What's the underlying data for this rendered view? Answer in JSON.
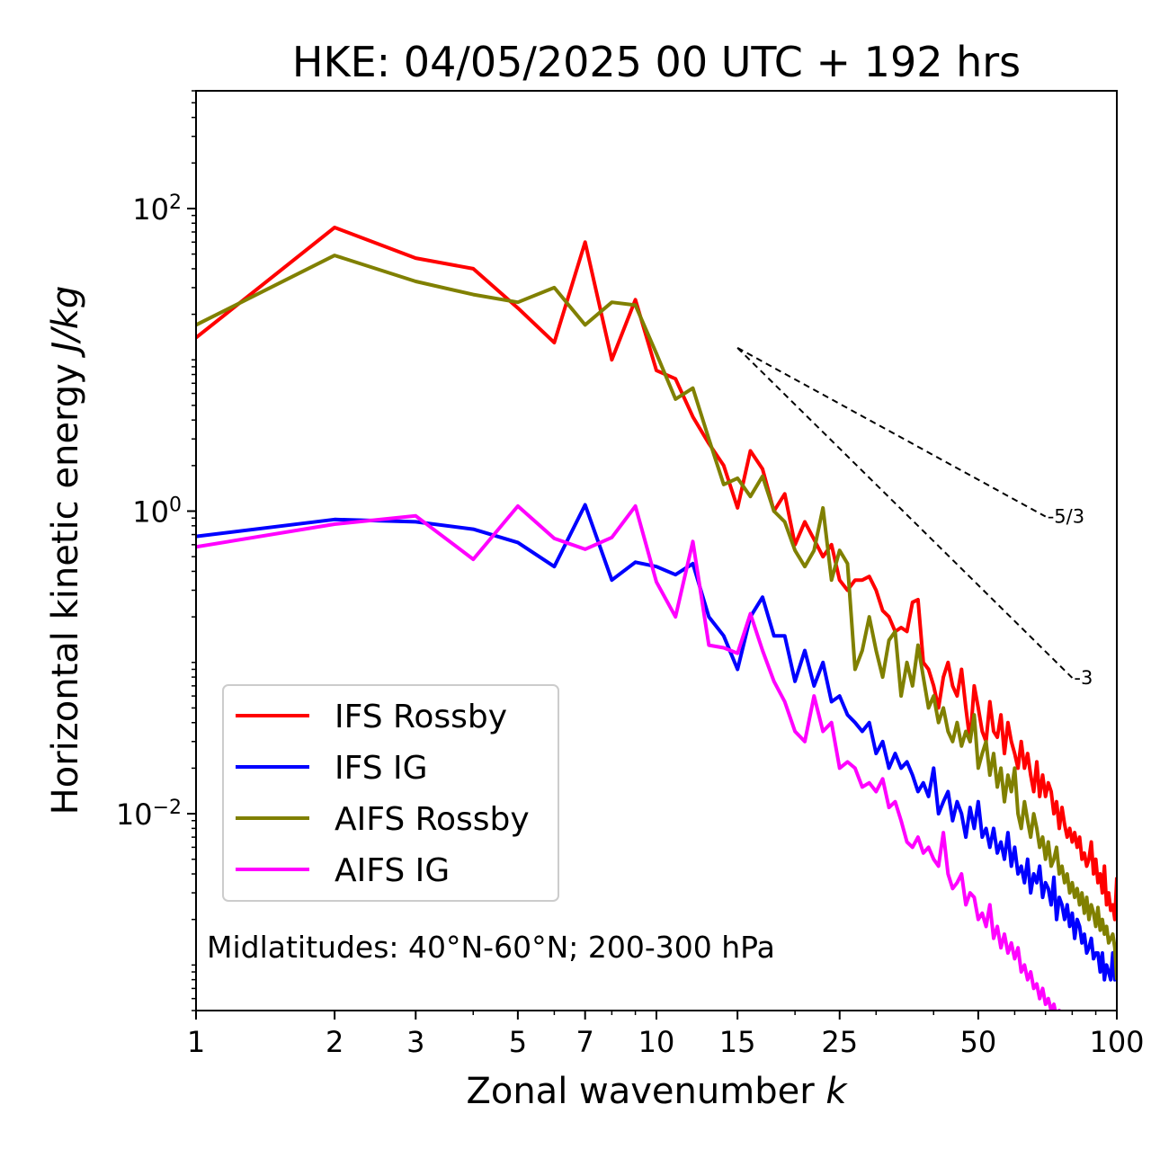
{
  "chart_data": {
    "type": "line",
    "title": "HKE: 04/05/2025 00 UTC + 192 hrs",
    "xlabel": "Zonal wavenumber",
    "xlabel_var": "k",
    "ylabel": "Horizontal kinetic energy",
    "ylabel_unit": "J/kg",
    "xscale": "log",
    "yscale": "log",
    "xlim": [
      1,
      100
    ],
    "ylim": [
      0.0005,
      600
    ],
    "x_ticks": [
      1,
      2,
      3,
      5,
      7,
      10,
      15,
      25,
      50,
      100
    ],
    "x_tick_labels": [
      "1",
      "2",
      "3",
      "5",
      "7",
      "10",
      "15",
      "25",
      "50",
      "100"
    ],
    "y_ticks": [
      {
        "value": 100,
        "base": "10",
        "exp": "2"
      },
      {
        "value": 1,
        "base": "10",
        "exp": "0"
      },
      {
        "value": 0.01,
        "base": "10",
        "exp": "−2"
      }
    ],
    "annotation": "Midlatitudes: 40°N-60°N; 200-300 hPa",
    "legend_position": "lower-left",
    "slope_guides": [
      {
        "label": "-5/3",
        "slope": -1.6667,
        "x_start": 15,
        "y_start": 12,
        "x_end": 70
      },
      {
        "label": "-3",
        "slope": -3,
        "x_start": 15,
        "y_start": 12,
        "x_end": 80
      }
    ],
    "series": [
      {
        "name": "IFS Rossby",
        "color": "#ff0000",
        "x": [
          1,
          2,
          3,
          4,
          5,
          6,
          7,
          8,
          9,
          10,
          11,
          12,
          13,
          14,
          15,
          16,
          17,
          18,
          19,
          20,
          21,
          22,
          23,
          24,
          25,
          26,
          27,
          28,
          29,
          30,
          31,
          32,
          33,
          34,
          35,
          36,
          37,
          38,
          39,
          40,
          41,
          42,
          43,
          44,
          45,
          46,
          47,
          48,
          49,
          50,
          51,
          52,
          53,
          54,
          55,
          56,
          57,
          58,
          59,
          60,
          61,
          62,
          63,
          64,
          65,
          66,
          67,
          68,
          69,
          70,
          71,
          72,
          73,
          74,
          75,
          76,
          77,
          78,
          79,
          80,
          81,
          82,
          83,
          84,
          85,
          86,
          87,
          88,
          89,
          90,
          91,
          92,
          93,
          94,
          95,
          96,
          97,
          98,
          99,
          100
        ],
        "y": [
          14,
          75,
          47,
          40,
          22,
          13,
          60,
          10,
          25,
          8.5,
          7.5,
          4.2,
          2.8,
          2.0,
          1.05,
          2.5,
          1.9,
          1.0,
          1.3,
          0.6,
          0.85,
          0.65,
          0.5,
          0.6,
          0.35,
          0.3,
          0.35,
          0.35,
          0.37,
          0.3,
          0.22,
          0.2,
          0.16,
          0.17,
          0.16,
          0.25,
          0.26,
          0.1,
          0.09,
          0.07,
          0.05,
          0.08,
          0.1,
          0.07,
          0.06,
          0.09,
          0.05,
          0.03,
          0.07,
          0.05,
          0.035,
          0.03,
          0.055,
          0.035,
          0.032,
          0.045,
          0.025,
          0.04,
          0.03,
          0.025,
          0.02,
          0.03,
          0.02,
          0.025,
          0.018,
          0.014,
          0.022,
          0.013,
          0.018,
          0.013,
          0.016,
          0.014,
          0.01,
          0.012,
          0.008,
          0.011,
          0.0085,
          0.007,
          0.008,
          0.0065,
          0.0075,
          0.006,
          0.007,
          0.005,
          0.0055,
          0.0045,
          0.005,
          0.0065,
          0.004,
          0.005,
          0.0035,
          0.004,
          0.003,
          0.0045,
          0.0025,
          0.003,
          0.0023,
          0.0025,
          0.002,
          0.0038
        ]
      },
      {
        "name": "IFS IG",
        "color": "#0000ff",
        "x": [
          1,
          2,
          3,
          4,
          5,
          6,
          7,
          8,
          9,
          10,
          11,
          12,
          13,
          14,
          15,
          16,
          17,
          18,
          19,
          20,
          21,
          22,
          23,
          24,
          25,
          26,
          27,
          28,
          29,
          30,
          31,
          32,
          33,
          34,
          35,
          36,
          37,
          38,
          39,
          40,
          41,
          42,
          43,
          44,
          45,
          46,
          47,
          48,
          49,
          50,
          51,
          52,
          53,
          54,
          55,
          56,
          57,
          58,
          59,
          60,
          61,
          62,
          63,
          64,
          65,
          66,
          67,
          68,
          69,
          70,
          71,
          72,
          73,
          74,
          75,
          76,
          77,
          78,
          79,
          80,
          81,
          82,
          83,
          84,
          85,
          86,
          87,
          88,
          89,
          90,
          91,
          92,
          93,
          94,
          95,
          96,
          97,
          98,
          99,
          100
        ],
        "y": [
          0.68,
          0.88,
          0.85,
          0.76,
          0.62,
          0.43,
          1.1,
          0.35,
          0.46,
          0.43,
          0.38,
          0.45,
          0.2,
          0.15,
          0.09,
          0.2,
          0.27,
          0.15,
          0.15,
          0.075,
          0.12,
          0.07,
          0.1,
          0.055,
          0.06,
          0.045,
          0.04,
          0.035,
          0.04,
          0.025,
          0.03,
          0.02,
          0.025,
          0.02,
          0.022,
          0.018,
          0.014,
          0.016,
          0.013,
          0.02,
          0.01,
          0.012,
          0.014,
          0.009,
          0.012,
          0.01,
          0.007,
          0.011,
          0.008,
          0.012,
          0.007,
          0.008,
          0.006,
          0.008,
          0.0055,
          0.0065,
          0.005,
          0.0075,
          0.0045,
          0.006,
          0.004,
          0.0045,
          0.0035,
          0.005,
          0.003,
          0.004,
          0.0035,
          0.0045,
          0.0028,
          0.0035,
          0.0032,
          0.0025,
          0.0038,
          0.002,
          0.0028,
          0.0025,
          0.002,
          0.0025,
          0.0018,
          0.0022,
          0.0015,
          0.002,
          0.0018,
          0.0014,
          0.0016,
          0.0012,
          0.0013,
          0.0015,
          0.0011,
          0.0012,
          0.0012,
          0.0009,
          0.0012,
          0.0008,
          0.001,
          0.0009,
          0.0008,
          0.0012,
          0.0008,
          0.0011
        ]
      },
      {
        "name": "AIFS Rossby",
        "color": "#808000",
        "x": [
          1,
          2,
          3,
          4,
          5,
          6,
          7,
          8,
          9,
          10,
          11,
          12,
          13,
          14,
          15,
          16,
          17,
          18,
          19,
          20,
          21,
          22,
          23,
          24,
          25,
          26,
          27,
          28,
          29,
          30,
          31,
          32,
          33,
          34,
          35,
          36,
          37,
          38,
          39,
          40,
          41,
          42,
          43,
          44,
          45,
          46,
          47,
          48,
          49,
          50,
          51,
          52,
          53,
          54,
          55,
          56,
          57,
          58,
          59,
          60,
          61,
          62,
          63,
          64,
          65,
          66,
          67,
          68,
          69,
          70,
          71,
          72,
          73,
          74,
          75,
          76,
          77,
          78,
          79,
          80,
          81,
          82,
          83,
          84,
          85,
          86,
          87,
          88,
          89,
          90,
          91,
          92,
          93,
          94,
          95,
          96,
          97,
          98,
          99,
          100
        ],
        "y": [
          17,
          49,
          33,
          27,
          24,
          30,
          17,
          24,
          23,
          11,
          5.5,
          6.5,
          3.0,
          1.5,
          1.65,
          1.25,
          1.7,
          1.0,
          0.85,
          0.55,
          0.43,
          0.55,
          1.05,
          0.35,
          0.55,
          0.45,
          0.09,
          0.12,
          0.2,
          0.12,
          0.08,
          0.14,
          0.16,
          0.06,
          0.1,
          0.07,
          0.13,
          0.08,
          0.05,
          0.06,
          0.04,
          0.05,
          0.035,
          0.03,
          0.04,
          0.028,
          0.035,
          0.03,
          0.045,
          0.02,
          0.025,
          0.03,
          0.018,
          0.025,
          0.015,
          0.02,
          0.012,
          0.018,
          0.014,
          0.02,
          0.01,
          0.008,
          0.012,
          0.009,
          0.007,
          0.01,
          0.008,
          0.006,
          0.007,
          0.005,
          0.0065,
          0.0045,
          0.005,
          0.006,
          0.004,
          0.0045,
          0.0035,
          0.004,
          0.003,
          0.0035,
          0.0028,
          0.0032,
          0.0025,
          0.003,
          0.0022,
          0.0028,
          0.002,
          0.0025,
          0.0022,
          0.0018,
          0.0024,
          0.0017,
          0.002,
          0.0016,
          0.0018,
          0.0014,
          0.0015,
          0.0016,
          0.0013,
          0.0008
        ]
      },
      {
        "name": "AIFS IG",
        "color": "#ff00ff",
        "x": [
          1,
          2,
          3,
          4,
          5,
          6,
          7,
          8,
          9,
          10,
          11,
          12,
          13,
          14,
          15,
          16,
          17,
          18,
          19,
          20,
          21,
          22,
          23,
          24,
          25,
          26,
          27,
          28,
          29,
          30,
          31,
          32,
          33,
          34,
          35,
          36,
          37,
          38,
          39,
          40,
          41,
          42,
          43,
          44,
          45,
          46,
          47,
          48,
          49,
          50,
          51,
          52,
          53,
          54,
          55,
          56,
          57,
          58,
          59,
          60,
          61,
          62,
          63,
          64,
          65,
          66,
          67,
          68,
          69,
          70,
          71,
          72,
          73,
          74,
          75,
          76,
          77,
          78,
          79,
          80,
          81,
          82,
          83,
          84,
          85,
          86,
          87,
          88,
          89,
          90,
          91,
          92,
          93,
          94,
          95,
          96,
          97,
          98,
          99,
          100
        ],
        "y": [
          0.58,
          0.82,
          0.93,
          0.48,
          1.08,
          0.66,
          0.56,
          0.67,
          1.08,
          0.34,
          0.2,
          0.63,
          0.13,
          0.125,
          0.115,
          0.21,
          0.12,
          0.075,
          0.055,
          0.035,
          0.03,
          0.06,
          0.035,
          0.04,
          0.02,
          0.022,
          0.02,
          0.015,
          0.016,
          0.014,
          0.017,
          0.011,
          0.012,
          0.009,
          0.0065,
          0.006,
          0.007,
          0.0055,
          0.006,
          0.005,
          0.0045,
          0.0075,
          0.004,
          0.0032,
          0.0035,
          0.004,
          0.0025,
          0.003,
          0.0028,
          0.002,
          0.0022,
          0.0018,
          0.0025,
          0.0015,
          0.0018,
          0.0013,
          0.0016,
          0.0012,
          0.0014,
          0.0011,
          0.0013,
          0.0009,
          0.001,
          0.0008,
          0.0009,
          0.0007,
          0.00075,
          0.0006,
          0.0007,
          0.00055,
          0.0006,
          0.0005,
          0.00055,
          0.00045,
          0.0005,
          0.00042,
          0.00045,
          0.0004,
          0.00042,
          0.00038,
          0.0004,
          0.00036,
          0.00038,
          0.00034,
          0.00036,
          0.00032,
          0.00034,
          0.0003,
          0.00032,
          0.00029,
          0.0003,
          0.00028,
          0.00029,
          0.00027,
          0.00028,
          0.00026,
          0.00027,
          0.00025,
          0.00026,
          0.00025
        ]
      }
    ]
  }
}
